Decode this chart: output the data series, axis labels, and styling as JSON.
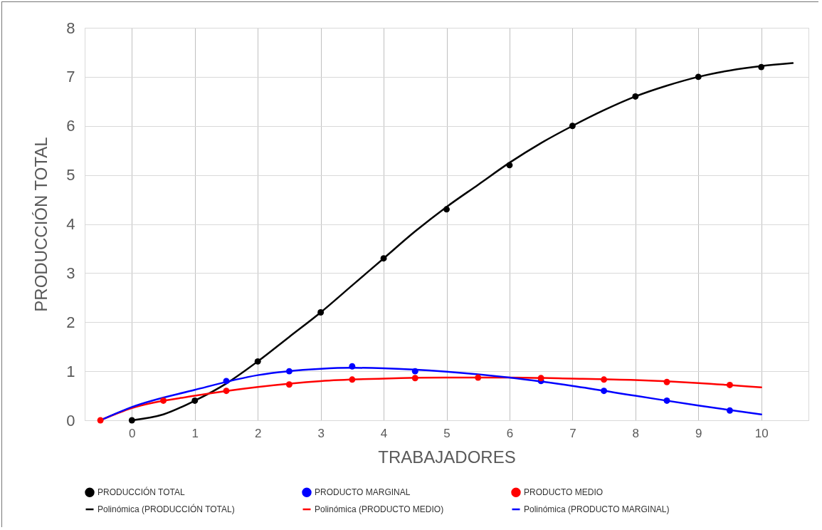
{
  "chart_data": {
    "type": "scatter",
    "xlabel": "TRABAJADORES",
    "ylabel": "PRODUCCIÓN TOTAL",
    "xlim": [
      -0.75,
      10.75
    ],
    "xticks": [
      0,
      1,
      2,
      3,
      4,
      5,
      6,
      7,
      8,
      9,
      10
    ],
    "ylim": [
      0,
      8
    ],
    "yticks": [
      0,
      1,
      2,
      3,
      4,
      5,
      6,
      7,
      8
    ],
    "grid": true,
    "legend": "bottom",
    "series": [
      {
        "name": "PRODUCCIÓN TOTAL",
        "marker": "circle",
        "color": "#000000",
        "x": [
          0,
          1,
          2,
          3,
          4,
          5,
          6,
          7,
          8,
          9,
          10
        ],
        "values": [
          0,
          0.4,
          1.2,
          2.2,
          3.3,
          4.3,
          5.2,
          6.0,
          6.6,
          7.0,
          7.2
        ]
      },
      {
        "name": "PRODUCTO MARGINAL",
        "marker": "circle",
        "color": "#0000ff",
        "x": [
          1.5,
          2.5,
          3.5,
          4.5,
          6.5,
          7.5,
          8.5,
          9.5
        ],
        "values": [
          0.8,
          1.0,
          1.1,
          1.0,
          0.8,
          0.6,
          0.4,
          0.2
        ]
      },
      {
        "name": "PRODUCTO MEDIO",
        "marker": "circle",
        "color": "#ff0000",
        "x": [
          -0.5,
          0.5,
          1.5,
          2.5,
          3.5,
          4.5,
          5.5,
          6.5,
          7.5,
          8.5,
          9.5
        ],
        "values": [
          0,
          0.4,
          0.6,
          0.73,
          0.83,
          0.86,
          0.87,
          0.86,
          0.83,
          0.78,
          0.72
        ]
      },
      {
        "name": "Polinómica (PRODUCCIÓN TOTAL)",
        "type": "line",
        "marker": "none",
        "color": "#000000",
        "x": [
          0,
          0.5,
          1,
          1.5,
          2,
          2.5,
          3,
          3.5,
          4,
          4.5,
          5,
          5.5,
          6,
          6.5,
          7,
          7.5,
          8,
          8.5,
          9,
          9.5,
          10,
          10.5
        ],
        "values": [
          0,
          0.12,
          0.4,
          0.75,
          1.2,
          1.7,
          2.2,
          2.75,
          3.3,
          3.85,
          4.35,
          4.8,
          5.25,
          5.65,
          6.0,
          6.32,
          6.6,
          6.82,
          7.0,
          7.13,
          7.22,
          7.28
        ]
      },
      {
        "name": "Polinómica (PRODUCTO MEDIO)",
        "type": "line",
        "marker": "none",
        "color": "#ff0000",
        "x": [
          -0.5,
          0,
          1,
          2,
          3,
          4,
          5,
          6,
          7,
          8,
          9,
          10
        ],
        "values": [
          0,
          0.25,
          0.5,
          0.68,
          0.8,
          0.85,
          0.87,
          0.87,
          0.85,
          0.82,
          0.76,
          0.67
        ]
      },
      {
        "name": "Polinómica (PRODUCTO MARGINAL)",
        "type": "line",
        "marker": "none",
        "color": "#0000ff",
        "x": [
          -0.5,
          0,
          1,
          2,
          3,
          3.5,
          4,
          5,
          6,
          7,
          8,
          9,
          10
        ],
        "values": [
          0,
          0.27,
          0.62,
          0.92,
          1.05,
          1.07,
          1.06,
          0.99,
          0.87,
          0.7,
          0.5,
          0.3,
          0.12
        ]
      }
    ]
  }
}
